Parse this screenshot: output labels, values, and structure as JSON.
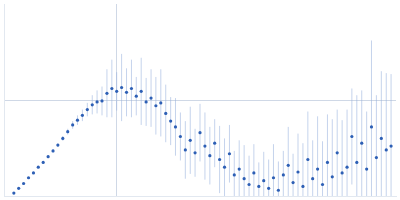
{
  "chart_data": {
    "type": "scatter",
    "x": [
      0.0088,
      0.0131,
      0.0175,
      0.0219,
      0.0263,
      0.0306,
      0.035,
      0.0394,
      0.0438,
      0.0481,
      0.0525,
      0.0569,
      0.0613,
      0.0656,
      0.07,
      0.0744,
      0.0788,
      0.0831,
      0.0875,
      0.0919,
      0.0963,
      0.1006,
      0.105,
      0.1094,
      0.1138,
      0.1181,
      0.1225,
      0.1269,
      0.1313,
      0.1356,
      0.14,
      0.1444,
      0.1488,
      0.1531,
      0.1575,
      0.1619,
      0.1663,
      0.1706,
      0.175,
      0.1794,
      0.1838,
      0.1881,
      0.1925,
      0.1969,
      0.2013,
      0.2056,
      0.21,
      0.2144,
      0.2188,
      0.2231,
      0.2275,
      0.2319,
      0.2363,
      0.2406,
      0.245,
      0.2494,
      0.2538,
      0.2581,
      0.2625,
      0.2669,
      0.2713,
      0.2756,
      0.28,
      0.2844,
      0.2888,
      0.2931,
      0.2975,
      0.3019,
      0.3063,
      0.3106,
      0.315,
      0.3194,
      0.3238,
      0.3281,
      0.3325,
      0.3369,
      0.3413,
      0.3456
    ],
    "values": [
      0.03,
      0.08,
      0.13,
      0.19,
      0.24,
      0.3,
      0.35,
      0.41,
      0.47,
      0.53,
      0.6,
      0.67,
      0.74,
      0.79,
      0.84,
      0.9,
      0.95,
      0.98,
      0.99,
      1.07,
      1.12,
      1.09,
      1.13,
      1.08,
      1.12,
      1.04,
      1.09,
      0.98,
      1.02,
      0.94,
      0.97,
      0.86,
      0.78,
      0.72,
      0.62,
      0.48,
      0.58,
      0.45,
      0.66,
      0.52,
      0.42,
      0.55,
      0.38,
      0.3,
      0.44,
      0.22,
      0.28,
      0.18,
      0.12,
      0.24,
      0.1,
      0.16,
      0.08,
      0.19,
      0.06,
      0.22,
      0.32,
      0.14,
      0.25,
      0.1,
      0.38,
      0.18,
      0.28,
      0.12,
      0.35,
      0.2,
      0.45,
      0.24,
      0.3,
      0.62,
      0.35,
      0.55,
      0.28,
      0.72,
      0.4,
      0.6,
      0.48,
      0.52
    ],
    "errors": [
      0.005,
      0.005,
      0.006,
      0.007,
      0.008,
      0.01,
      0.012,
      0.015,
      0.018,
      0.02,
      0.025,
      0.03,
      0.04,
      0.05,
      0.06,
      0.07,
      0.1,
      0.12,
      0.15,
      0.25,
      0.3,
      0.2,
      0.35,
      0.25,
      0.3,
      0.2,
      0.35,
      0.25,
      0.3,
      0.3,
      0.35,
      0.3,
      0.25,
      0.3,
      0.25,
      0.3,
      0.35,
      0.25,
      0.3,
      0.35,
      0.3,
      0.25,
      0.35,
      0.3,
      0.3,
      0.25,
      0.3,
      0.35,
      0.3,
      0.3,
      0.25,
      0.3,
      0.3,
      0.35,
      0.3,
      0.25,
      0.4,
      0.3,
      0.4,
      0.45,
      0.5,
      0.4,
      0.55,
      0.45,
      0.5,
      0.6,
      0.45,
      0.55,
      0.6,
      0.5,
      0.7,
      0.55,
      0.6,
      0.9,
      0.65,
      0.7,
      0.8,
      0.75
    ],
    "color": "#2d5fb5",
    "marker": "circle",
    "xlim": [
      0,
      0.35
    ],
    "xticks": [
      0,
      0.1
    ],
    "ylim": [
      0,
      2
    ],
    "yticks": [
      0,
      1
    ],
    "grid": true,
    "tick_labels": false
  }
}
